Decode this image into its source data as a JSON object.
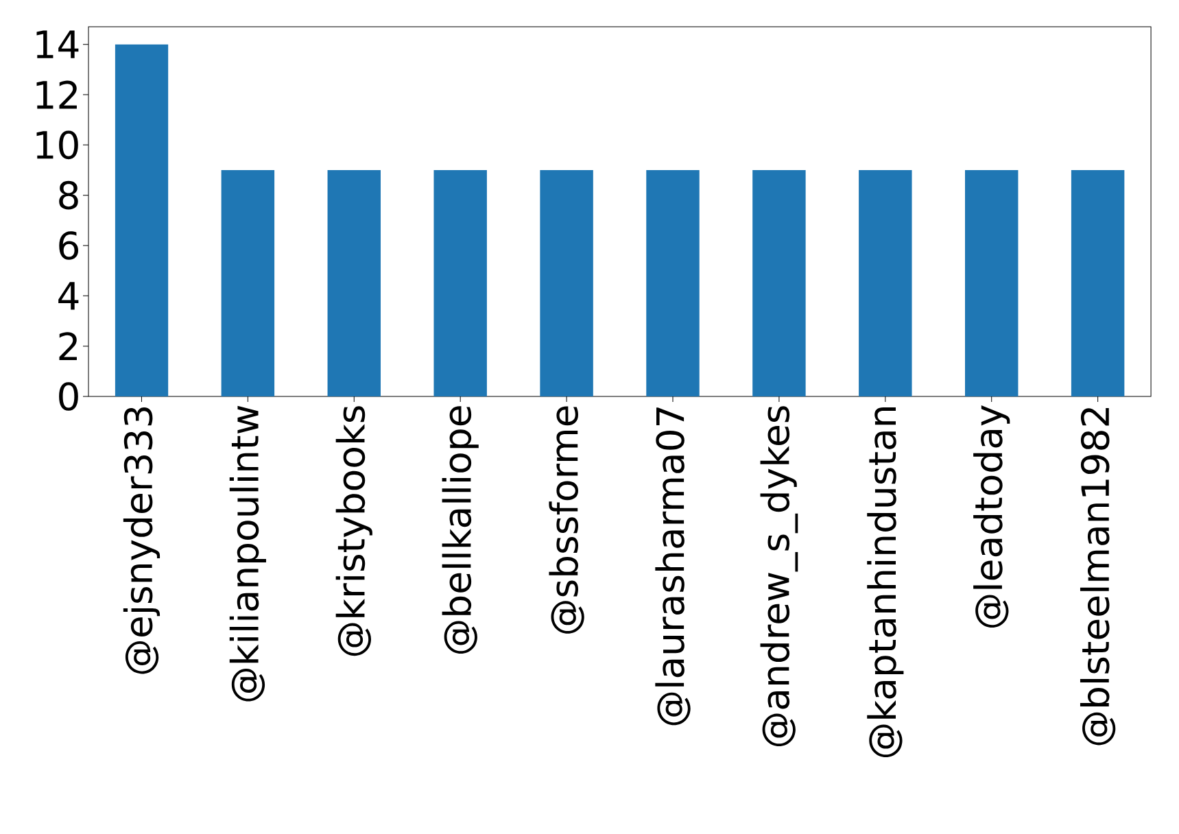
{
  "chart_data": {
    "type": "bar",
    "categories": [
      "@ejsnyder333",
      "@kilianpoulintw",
      "@kristybooks",
      "@bellkalliope",
      "@sbssforme",
      "@laurasharma07",
      "@andrew_s_dykes",
      "@kaptanhindustan",
      "@leadtoday",
      "@blsteelman1982"
    ],
    "values": [
      14,
      9,
      9,
      9,
      9,
      9,
      9,
      9,
      9,
      9
    ],
    "color": "#1f77b4",
    "ylim": [
      0,
      14.7
    ],
    "yticks": [
      0,
      2,
      4,
      6,
      8,
      10,
      12,
      14
    ]
  }
}
